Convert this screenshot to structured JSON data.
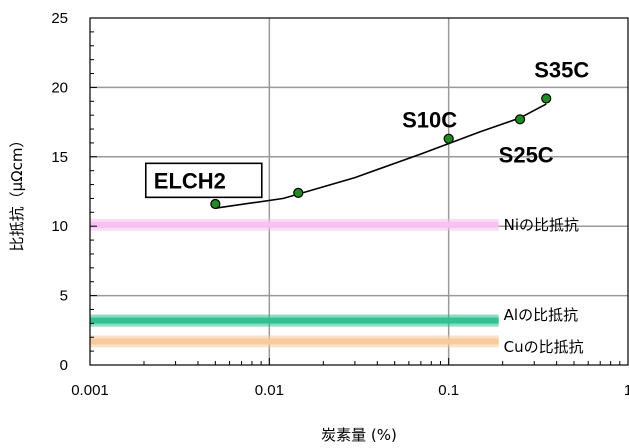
{
  "chart_data": {
    "type": "scatter",
    "xlabel": "炭素量 (%)",
    "ylabel": "比抵抗（μΩcm）",
    "xscale": "log",
    "xlim": [
      0.001,
      1
    ],
    "ylim": [
      0,
      25
    ],
    "x_ticks": [
      "0.001",
      "0.01",
      "0.1",
      "1"
    ],
    "y_ticks": [
      "0",
      "5",
      "10",
      "15",
      "20",
      "25"
    ],
    "grid": true,
    "series": [
      {
        "points": [
          {
            "x": 0.005,
            "y": 11.6
          },
          {
            "x": 0.0145,
            "y": 12.4
          },
          {
            "x": 0.1,
            "y": 16.3
          },
          {
            "x": 0.25,
            "y": 17.7
          },
          {
            "x": 0.35,
            "y": 19.2
          }
        ],
        "marker_color": "#1e8c1e",
        "line_color": "#000000"
      }
    ],
    "trend_line": [
      {
        "x": 0.005,
        "y": 11.3
      },
      {
        "x": 0.012,
        "y": 12.0
      },
      {
        "x": 0.03,
        "y": 13.5
      },
      {
        "x": 0.07,
        "y": 15.2
      },
      {
        "x": 0.15,
        "y": 16.8
      },
      {
        "x": 0.25,
        "y": 17.8
      },
      {
        "x": 0.35,
        "y": 18.8
      }
    ],
    "reference_bands": [
      {
        "label": "Niの比抵抗",
        "y": 10.1,
        "x_end": 0.19,
        "color": "#f7c0f0",
        "label_y": 10.1
      },
      {
        "label": "Alの比抵抗",
        "y": 3.2,
        "x_end": 0.19,
        "color": "#2dbf8f",
        "label_y": 3.6
      },
      {
        "label": "Cuの比抵抗",
        "y": 1.7,
        "x_end": 0.19,
        "color": "#f8c89a",
        "label_y": 1.3
      }
    ],
    "annotations": [
      {
        "text": "ELCH2",
        "boxed": true,
        "x": 0.0021,
        "y": 12.8
      },
      {
        "text": "S10C",
        "x": 0.055,
        "y": 17.1
      },
      {
        "text": "S25C",
        "x": 0.19,
        "y": 14.6
      },
      {
        "text": "S35C",
        "x": 0.3,
        "y": 20.7
      }
    ]
  }
}
